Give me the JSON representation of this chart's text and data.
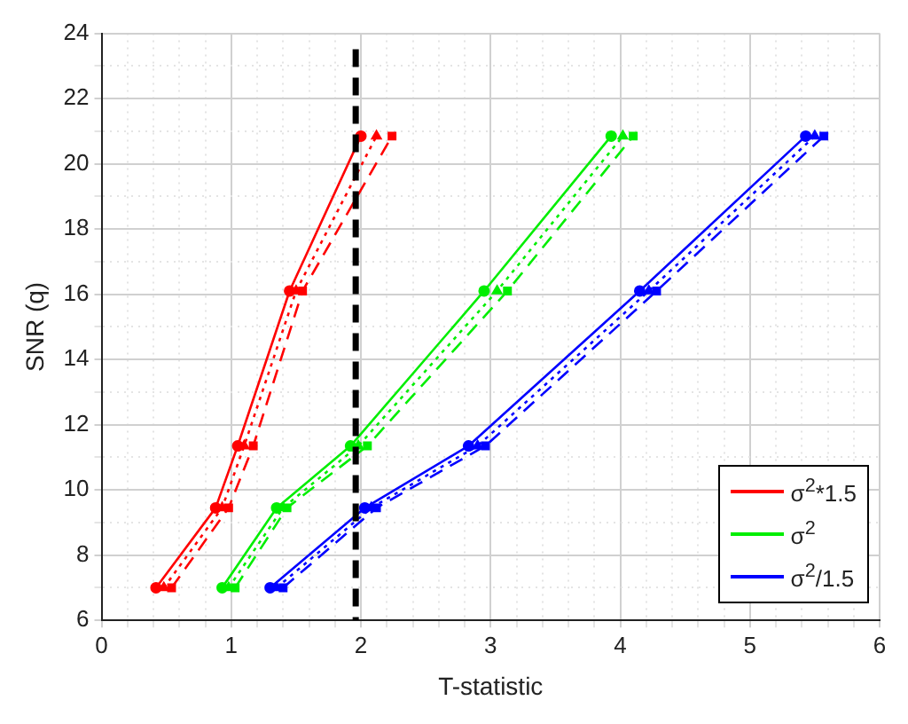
{
  "chart_data": {
    "type": "line",
    "xlabel": "T-statistic",
    "ylabel": "SNR (q)",
    "xlim": [
      0,
      6
    ],
    "ylim": [
      6,
      24
    ],
    "xticks": [
      0,
      {
        "value": 0.2,
        "label": null
      },
      {
        "value": 0.4,
        "label": null
      },
      {
        "value": 0.6,
        "label": null
      },
      {
        "value": 0.8,
        "label": null
      },
      1,
      {
        "value": 1.2,
        "label": null
      },
      {
        "value": 1.4,
        "label": null
      },
      {
        "value": 1.6,
        "label": null
      },
      {
        "value": 1.8,
        "label": null
      },
      2,
      {
        "value": 2.2,
        "label": null
      },
      {
        "value": 2.4,
        "label": null
      },
      {
        "value": 2.6,
        "label": null
      },
      {
        "value": 2.8,
        "label": null
      },
      3,
      {
        "value": 3.2,
        "label": null
      },
      {
        "value": 3.4,
        "label": null
      },
      {
        "value": 3.6,
        "label": null
      },
      {
        "value": 3.8,
        "label": null
      },
      4,
      {
        "value": 4.2,
        "label": null
      },
      {
        "value": 4.4,
        "label": null
      },
      {
        "value": 4.6,
        "label": null
      },
      {
        "value": 4.8,
        "label": null
      },
      5,
      {
        "value": 5.2,
        "label": null
      },
      {
        "value": 5.4,
        "label": null
      },
      {
        "value": 5.6,
        "label": null
      },
      {
        "value": 5.8,
        "label": null
      },
      6
    ],
    "yticks": [
      6,
      {
        "value": 7,
        "label": null
      },
      8,
      {
        "value": 9,
        "label": null
      },
      10,
      {
        "value": 11,
        "label": null
      },
      12,
      {
        "value": 13,
        "label": null
      },
      14,
      {
        "value": 15,
        "label": null
      },
      16,
      {
        "value": 17,
        "label": null
      },
      18,
      {
        "value": 19,
        "label": null
      },
      20,
      {
        "value": 21,
        "label": null
      },
      22,
      {
        "value": 23,
        "label": null
      },
      24
    ],
    "grid": true,
    "legend": "bottom right",
    "series": [
      {
        "name": "σ$^{2}$*1.5",
        "color": "#ff0000",
        "marker": "circle",
        "line_style": "solid",
        "x": [
          0.42,
          0.88,
          1.05,
          1.45,
          2.0
        ],
        "values": [
          7.0,
          9.45,
          11.35,
          16.1,
          20.85
        ]
      },
      {
        "color": "#ff0000",
        "marker": "triangle",
        "line_style": "dotted",
        "x": [
          0.48,
          0.93,
          1.1,
          1.5,
          2.12
        ],
        "values": [
          7.0,
          9.45,
          11.35,
          16.1,
          20.85
        ]
      },
      {
        "color": "#ff0000",
        "marker": "square",
        "line_style": "dashed",
        "x": [
          0.54,
          0.98,
          1.17,
          1.55,
          2.24
        ],
        "values": [
          7.0,
          9.45,
          11.35,
          16.1,
          20.85
        ]
      },
      {
        "name": "σ$^{2}$",
        "color": "#00ee00",
        "marker": "circle",
        "line_style": "solid",
        "x": [
          0.93,
          1.35,
          1.92,
          2.95,
          3.93
        ],
        "values": [
          7.0,
          9.45,
          11.35,
          16.1,
          20.85
        ]
      },
      {
        "color": "#00ee00",
        "marker": "triangle",
        "line_style": "dotted",
        "x": [
          0.98,
          1.4,
          1.98,
          3.05,
          4.02
        ],
        "values": [
          7.0,
          9.45,
          11.35,
          16.1,
          20.85
        ]
      },
      {
        "color": "#00ee00",
        "marker": "square",
        "line_style": "dashed",
        "x": [
          1.03,
          1.43,
          2.05,
          3.13,
          4.1
        ],
        "values": [
          7.0,
          9.45,
          11.35,
          16.1,
          20.85
        ]
      },
      {
        "name": "σ$^{2}$/1.5",
        "color": "#0000ff",
        "marker": "circle",
        "line_style": "solid",
        "x": [
          1.3,
          2.03,
          2.83,
          4.15,
          5.43
        ],
        "values": [
          7.0,
          9.45,
          11.35,
          16.1,
          20.85
        ]
      },
      {
        "color": "#0000ff",
        "marker": "triangle",
        "line_style": "dotted",
        "x": [
          1.35,
          2.08,
          2.9,
          4.22,
          5.5
        ],
        "values": [
          7.0,
          9.45,
          11.35,
          16.1,
          20.85
        ]
      },
      {
        "color": "#0000ff",
        "marker": "square",
        "line_style": "dashed",
        "x": [
          1.4,
          2.12,
          2.96,
          4.28,
          5.57
        ],
        "values": [
          7.0,
          9.45,
          11.35,
          16.1,
          20.85
        ]
      }
    ],
    "ref_lines": [
      {
        "axis": "x",
        "value": 1.96,
        "color": "#000000",
        "line_style": "dashed"
      }
    ]
  }
}
